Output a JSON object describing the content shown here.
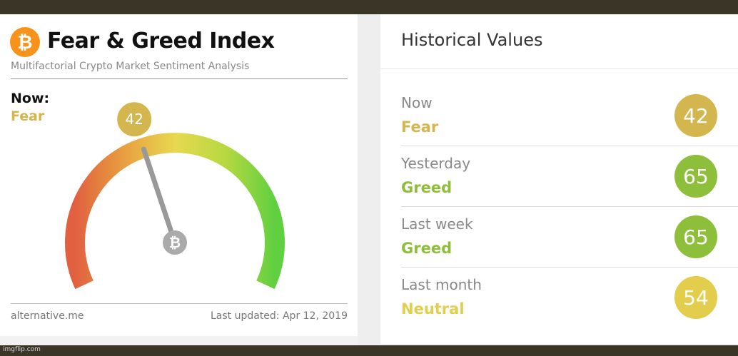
{
  "header": {
    "logo_symbol": "₿",
    "title": "Fear & Greed Index",
    "subtitle": "Multifactorial Crypto Market Sentiment Analysis"
  },
  "now": {
    "label": "Now:",
    "classification": "Fear",
    "value": "42",
    "value_number": 42,
    "scale_max": 100
  },
  "gauge": {
    "center_symbol": "₿",
    "colors": [
      "#e06040",
      "#e8a040",
      "#e8d850",
      "#b8d840",
      "#60d040"
    ]
  },
  "footer": {
    "site": "alternative.me",
    "updated": "Last updated: Apr 12, 2019"
  },
  "historical": {
    "title": "Historical Values",
    "rows": [
      {
        "period": "Now",
        "classification": "Fear",
        "value": "42",
        "color": "#d4b64e"
      },
      {
        "period": "Yesterday",
        "classification": "Greed",
        "value": "65",
        "color": "#8ebf3b"
      },
      {
        "period": "Last week",
        "classification": "Greed",
        "value": "65",
        "color": "#8ebf3b"
      },
      {
        "period": "Last month",
        "classification": "Neutral",
        "value": "54",
        "color": "#e2cd4c"
      }
    ]
  },
  "watermark": "imgflip.com",
  "colors": {
    "fear": "#d4b64e",
    "greed": "#8ebf3b",
    "neutral": "#e2cd4c",
    "bitcoin_orange": "#f7931a",
    "frame": "#3b3528"
  }
}
